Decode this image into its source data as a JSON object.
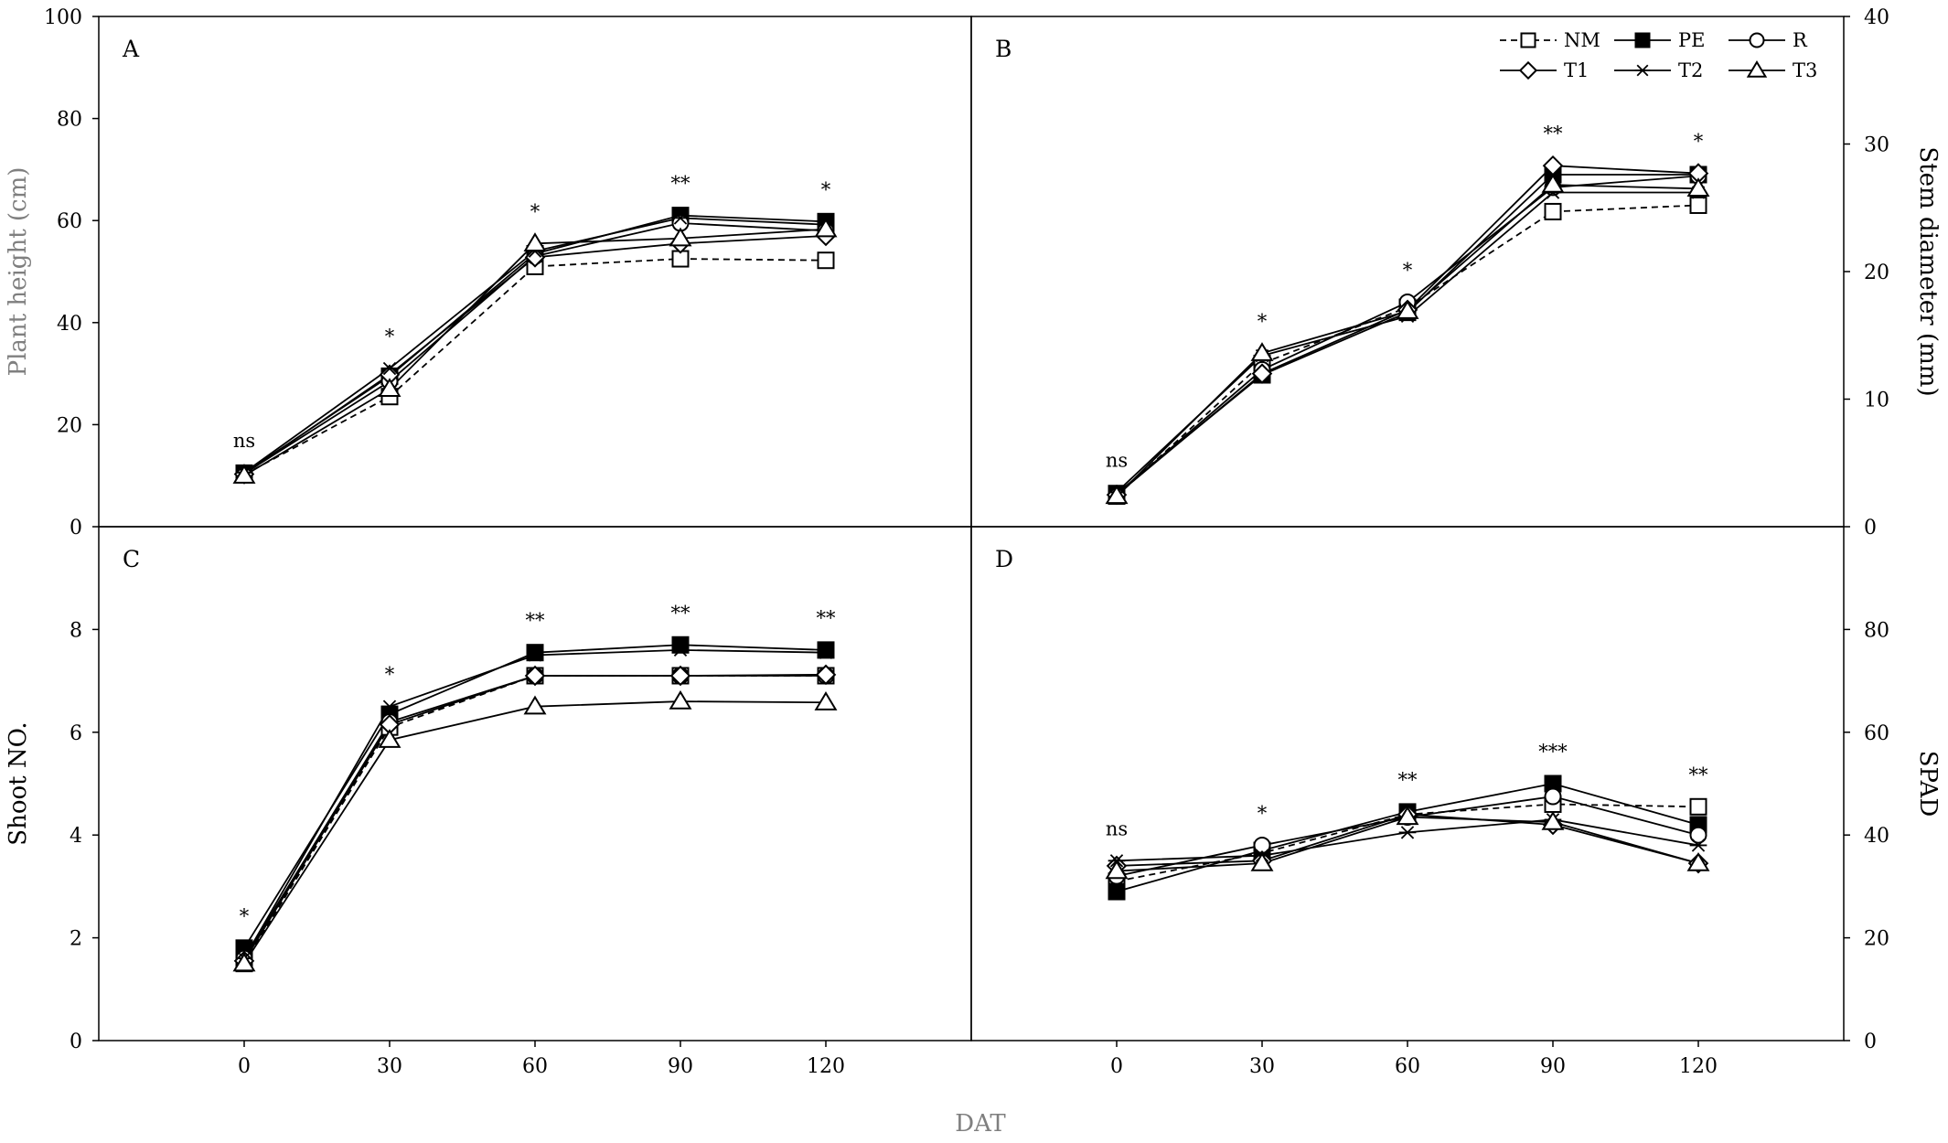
{
  "xlabel": "DAT",
  "legend": {
    "placement": "top-right of panel B",
    "entries": [
      {
        "name": "NM",
        "marker": "open-square",
        "dash": true
      },
      {
        "name": "PE",
        "marker": "filled-square",
        "dash": false
      },
      {
        "name": "R",
        "marker": "open-circle",
        "dash": false
      },
      {
        "name": "T1",
        "marker": "open-diamond",
        "dash": false
      },
      {
        "name": "T2",
        "marker": "asterisk",
        "dash": false
      },
      {
        "name": "T3",
        "marker": "open-triangle",
        "dash": false
      }
    ]
  },
  "chart_data": [
    {
      "type": "line",
      "panel": "A",
      "ylabel": "Plant height (cm)",
      "yaxis_side": "left",
      "ylim": [
        0,
        100
      ],
      "yticks": [
        0,
        20,
        40,
        60,
        80,
        100
      ],
      "x": [
        0,
        30,
        60,
        90,
        120
      ],
      "xticks": [
        0,
        30,
        60,
        90,
        120
      ],
      "significance": [
        "ns",
        "*",
        "*",
        "**",
        "*"
      ],
      "series": [
        {
          "name": "NM",
          "values": [
            10.2,
            25.5,
            51.0,
            52.5,
            52.2
          ]
        },
        {
          "name": "PE",
          "values": [
            10.5,
            29.5,
            53.5,
            61.0,
            59.8
          ]
        },
        {
          "name": "R",
          "values": [
            10.4,
            28.5,
            53.0,
            59.5,
            58.0
          ]
        },
        {
          "name": "T1",
          "values": [
            10.3,
            29.8,
            52.8,
            55.5,
            57.0
          ]
        },
        {
          "name": "T2",
          "values": [
            10.6,
            31.0,
            54.0,
            60.5,
            59.2
          ]
        },
        {
          "name": "T3",
          "values": [
            10.0,
            27.0,
            55.5,
            56.5,
            58.3
          ]
        }
      ]
    },
    {
      "type": "line",
      "panel": "B",
      "ylabel": "Stem diameter (mm)",
      "yaxis_side": "right",
      "ylim": [
        0,
        40
      ],
      "yticks": [
        0,
        10,
        20,
        30,
        40
      ],
      "x": [
        0,
        30,
        60,
        90,
        120
      ],
      "xticks": [
        0,
        30,
        60,
        90,
        120
      ],
      "significance": [
        "ns",
        "*",
        "*",
        "**",
        "*"
      ],
      "series": [
        {
          "name": "NM",
          "values": [
            2.4,
            12.8,
            17.2,
            24.7,
            25.2
          ]
        },
        {
          "name": "PE",
          "values": [
            2.6,
            11.9,
            16.8,
            27.6,
            27.6
          ]
        },
        {
          "name": "R",
          "values": [
            2.5,
            12.3,
            17.6,
            26.6,
            27.5
          ]
        },
        {
          "name": "T1",
          "values": [
            2.5,
            12.0,
            17.0,
            28.3,
            27.7
          ]
        },
        {
          "name": "T2",
          "values": [
            2.7,
            13.4,
            16.5,
            26.2,
            26.2
          ]
        },
        {
          "name": "T3",
          "values": [
            2.4,
            13.6,
            16.9,
            26.8,
            26.5
          ]
        }
      ]
    },
    {
      "type": "line",
      "panel": "C",
      "ylabel": "Shoot NO.",
      "yaxis_side": "left",
      "ylim": [
        0,
        10
      ],
      "yticks": [
        0,
        2,
        4,
        6,
        8
      ],
      "x": [
        0,
        30,
        60,
        90,
        120
      ],
      "xticks": [
        0,
        30,
        60,
        90,
        120
      ],
      "significance": [
        "*",
        "*",
        "**",
        "**",
        "**"
      ],
      "series": [
        {
          "name": "NM",
          "values": [
            1.5,
            6.1,
            7.1,
            7.1,
            7.1
          ]
        },
        {
          "name": "PE",
          "values": [
            1.8,
            6.35,
            7.55,
            7.7,
            7.6
          ]
        },
        {
          "name": "R",
          "values": [
            1.6,
            6.2,
            7.1,
            7.1,
            7.1
          ]
        },
        {
          "name": "T1",
          "values": [
            1.55,
            6.15,
            7.1,
            7.1,
            7.12
          ]
        },
        {
          "name": "T2",
          "values": [
            1.6,
            6.5,
            7.5,
            7.6,
            7.55
          ]
        },
        {
          "name": "T3",
          "values": [
            1.5,
            5.85,
            6.5,
            6.6,
            6.58
          ]
        }
      ]
    },
    {
      "type": "line",
      "panel": "D",
      "ylabel": "SPAD",
      "yaxis_side": "right",
      "ylim": [
        0,
        100
      ],
      "yticks": [
        0,
        20,
        40,
        60,
        80
      ],
      "x": [
        0,
        30,
        60,
        90,
        120
      ],
      "xticks": [
        0,
        30,
        60,
        90,
        120
      ],
      "significance": [
        "ns",
        "*",
        "**",
        "***",
        "**"
      ],
      "series": [
        {
          "name": "NM",
          "values": [
            31.0,
            36.5,
            44.0,
            46.0,
            45.5
          ]
        },
        {
          "name": "PE",
          "values": [
            29.0,
            37.0,
            44.5,
            50.0,
            42.0
          ]
        },
        {
          "name": "R",
          "values": [
            32.0,
            38.0,
            43.5,
            47.5,
            40.0
          ]
        },
        {
          "name": "T1",
          "values": [
            34.0,
            35.0,
            44.0,
            42.0,
            34.5
          ]
        },
        {
          "name": "T2",
          "values": [
            35.0,
            36.0,
            40.5,
            43.0,
            38.0
          ]
        },
        {
          "name": "T3",
          "values": [
            33.0,
            34.5,
            43.5,
            42.5,
            34.5
          ]
        }
      ]
    }
  ]
}
